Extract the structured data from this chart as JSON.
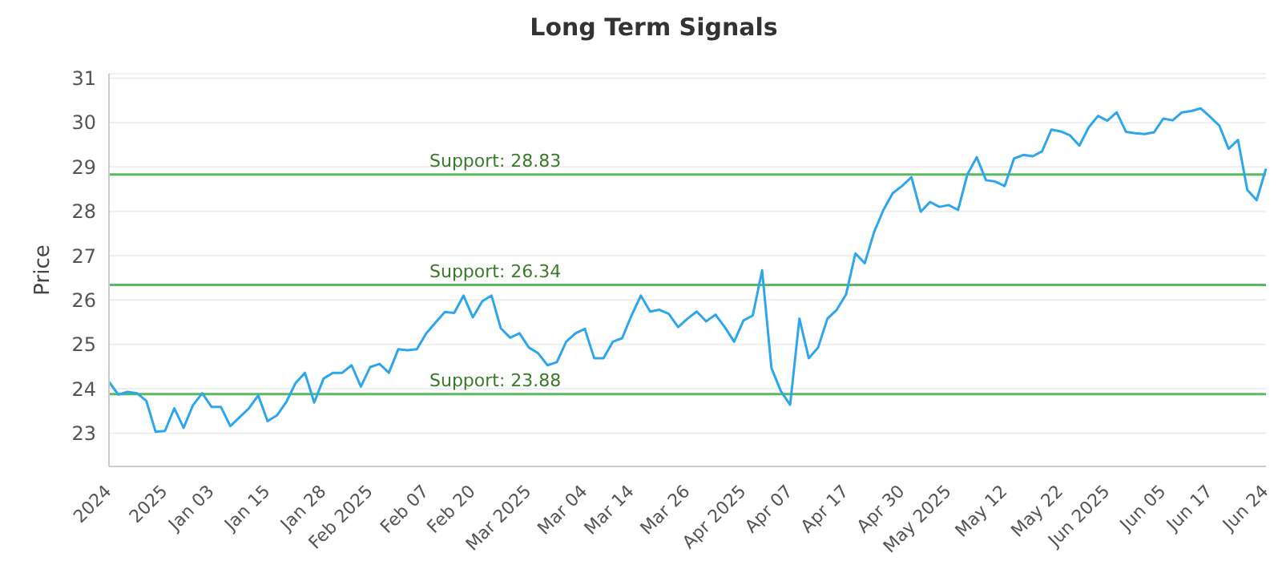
{
  "chart_data": {
    "type": "line",
    "title": "Long Term Signals",
    "ylabel": "Price",
    "categories": [
      "2024",
      null,
      null,
      null,
      null,
      null,
      "2025",
      null,
      null,
      null,
      null,
      "Jan 03",
      null,
      null,
      null,
      null,
      null,
      "Jan 15",
      null,
      null,
      null,
      null,
      null,
      "Jan 28",
      null,
      null,
      null,
      null,
      "Feb 2025",
      null,
      null,
      null,
      null,
      null,
      "Feb 07",
      null,
      null,
      null,
      null,
      "Feb 20",
      null,
      null,
      null,
      null,
      null,
      "Mar 2025",
      null,
      null,
      null,
      null,
      null,
      "Mar 04",
      null,
      null,
      null,
      null,
      "Mar 14",
      null,
      null,
      null,
      null,
      null,
      "Mar 26",
      null,
      null,
      null,
      null,
      null,
      "Apr 2025",
      null,
      null,
      null,
      null,
      "Apr 07",
      null,
      null,
      null,
      null,
      null,
      "Apr 17",
      null,
      null,
      null,
      null,
      null,
      "Apr 30",
      null,
      null,
      null,
      null,
      "May 2025",
      null,
      null,
      null,
      null,
      null,
      "May 12",
      null,
      null,
      null,
      null,
      null,
      "May 22",
      null,
      null,
      null,
      null,
      "Jun 2025",
      null,
      null,
      null,
      null,
      null,
      "Jun 05",
      null,
      null,
      null,
      null,
      "Jun 17",
      null,
      null,
      null,
      null,
      null,
      "Jun 24"
    ],
    "series": [
      {
        "color": "#2ea6ec",
        "values": [
          24.16,
          23.87,
          23.93,
          23.9,
          23.73,
          23.03,
          23.05,
          23.56,
          23.12,
          23.63,
          23.9,
          23.59,
          23.59,
          23.16,
          23.36,
          23.56,
          23.85,
          23.27,
          23.4,
          23.7,
          24.13,
          24.36,
          23.69,
          24.23,
          24.36,
          24.36,
          24.53,
          24.05,
          24.49,
          24.56,
          24.36,
          24.89,
          24.87,
          24.89,
          25.25,
          25.49,
          25.73,
          25.71,
          26.1,
          25.61,
          25.97,
          26.1,
          25.36,
          25.15,
          25.25,
          24.93,
          24.8,
          24.53,
          24.6,
          25.06,
          25.25,
          25.35,
          24.69,
          24.69,
          25.06,
          25.14,
          25.65,
          26.1,
          25.74,
          25.78,
          25.69,
          25.39,
          25.58,
          25.74,
          25.52,
          25.67,
          25.39,
          25.06,
          25.54,
          25.65,
          26.67,
          24.47,
          23.95,
          23.64,
          25.58,
          24.69,
          24.93,
          25.58,
          25.78,
          26.13,
          27.05,
          26.83,
          27.53,
          28.03,
          28.41,
          28.57,
          28.77,
          27.99,
          28.21,
          28.1,
          28.14,
          28.03,
          28.83,
          29.22,
          28.7,
          28.67,
          28.57,
          29.19,
          29.27,
          29.24,
          29.35,
          29.84,
          29.8,
          29.71,
          29.48,
          29.89,
          30.15,
          30.04,
          30.23,
          29.79,
          29.76,
          29.74,
          29.78,
          30.09,
          30.05,
          30.23,
          30.26,
          30.32,
          30.13,
          29.93,
          29.41,
          29.61,
          28.48,
          28.25,
          28.96
        ]
      }
    ],
    "ylim": [
      22.25,
      31.1
    ],
    "yticks": [
      23,
      24,
      25,
      26,
      27,
      28,
      29,
      30,
      31
    ],
    "grid": "y",
    "marker": "none",
    "line_style": "solid",
    "ref_lines": [
      {
        "axis": "y",
        "value": 28.83,
        "label": "Support: 28.83",
        "color": "#5cb85c"
      },
      {
        "axis": "y",
        "value": 26.34,
        "label": "Support: 26.34",
        "color": "#5cb85c"
      },
      {
        "axis": "y",
        "value": 23.88,
        "label": "Support: 23.88",
        "color": "#5cb85c"
      }
    ]
  }
}
